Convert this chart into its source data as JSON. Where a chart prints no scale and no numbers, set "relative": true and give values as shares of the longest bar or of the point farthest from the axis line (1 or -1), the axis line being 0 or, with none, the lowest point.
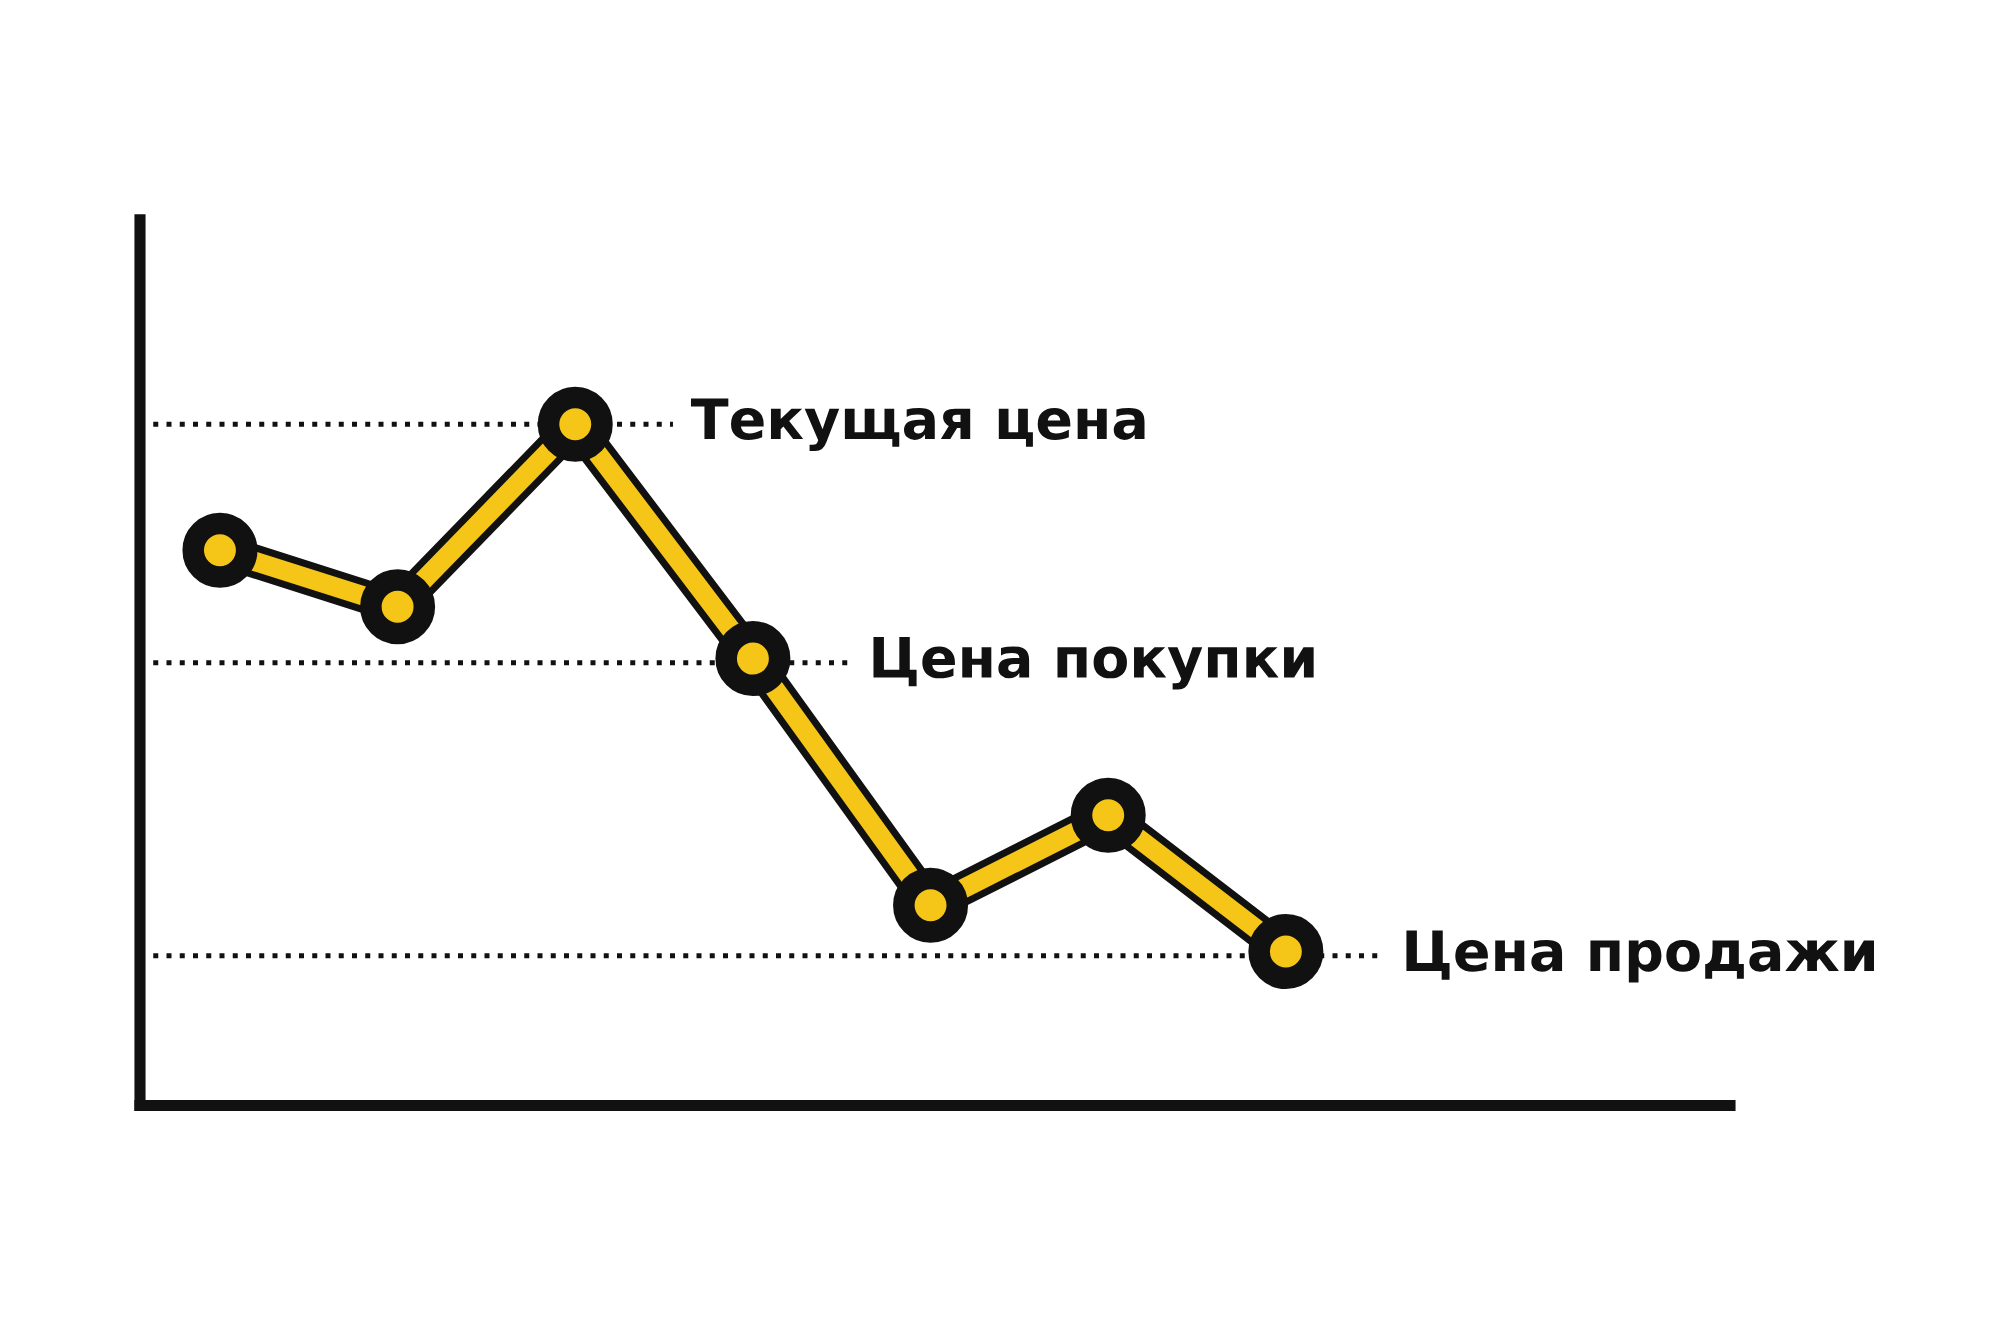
{
  "chart_data": {
    "type": "line",
    "relative": true,
    "categories": [
      null,
      null,
      null,
      null,
      null,
      null,
      null
    ],
    "series": [
      {
        "color": "#f5c518",
        "values": [
          0.815,
          0.732,
          1,
          0.656,
          0.294,
          0.426,
          0.226
        ]
      }
    ],
    "marker": "circle",
    "line_style": "solid",
    "legend": false,
    "ref_lines": [
      {
        "axis": "y",
        "value": 1,
        "label": "Текущая цена",
        "color": "#111111",
        "line_style": "dotted"
      },
      {
        "axis": "y",
        "value": 0.65,
        "label": "Цена покупки",
        "color": "#111111",
        "line_style": "dotted"
      },
      {
        "axis": "y",
        "value": 0.22,
        "label": "Цена продажи",
        "color": "#111111",
        "line_style": "dotted"
      }
    ]
  }
}
